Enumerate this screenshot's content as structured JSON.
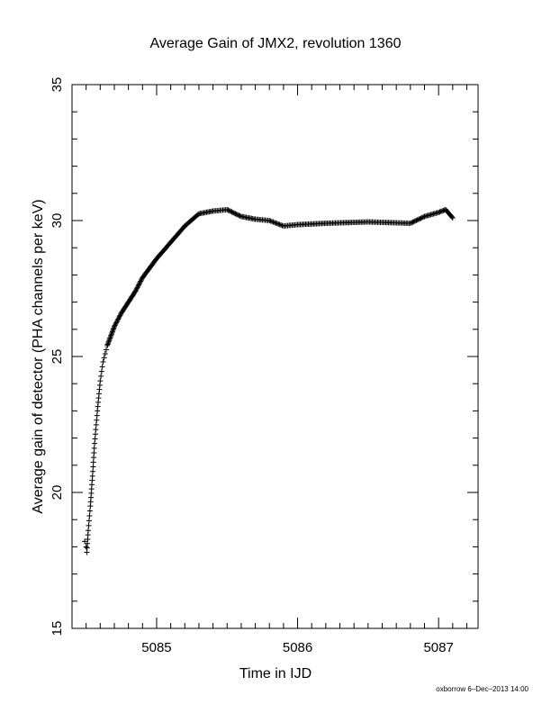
{
  "chart_data": {
    "type": "scatter",
    "title": "Average Gain of JMX2, revolution 1360",
    "xlabel": "Time in IJD",
    "ylabel": "Average gain of detector (PHA channels per keV)",
    "xlim": [
      5084.4,
      5087.28
    ],
    "ylim": [
      15,
      35
    ],
    "xticks": [
      5085,
      5086,
      5087
    ],
    "xtick_labels": [
      "5085",
      "5086",
      "5087"
    ],
    "x_minor_step": 0.1,
    "yticks": [
      15,
      20,
      25,
      30,
      35
    ],
    "ytick_labels": [
      "15",
      "20",
      "25",
      "30",
      "35"
    ],
    "y_minor_step": 1,
    "marker": "plus",
    "grid": false,
    "series": [
      {
        "name": "",
        "curve_points": [
          [
            5084.505,
            17.8
          ],
          [
            5084.515,
            18.6
          ],
          [
            5084.53,
            19.5
          ],
          [
            5084.545,
            20.6
          ],
          [
            5084.56,
            21.8
          ],
          [
            5084.58,
            23.0
          ],
          [
            5084.6,
            24.1
          ],
          [
            5084.62,
            24.8
          ],
          [
            5084.65,
            25.4
          ],
          [
            5084.7,
            26.1
          ],
          [
            5084.75,
            26.6
          ],
          [
            5084.8,
            27.0
          ],
          [
            5084.85,
            27.4
          ],
          [
            5084.9,
            27.9
          ],
          [
            5085.0,
            28.6
          ],
          [
            5085.1,
            29.2
          ],
          [
            5085.2,
            29.8
          ],
          [
            5085.3,
            30.25
          ],
          [
            5085.4,
            30.35
          ],
          [
            5085.5,
            30.4
          ],
          [
            5085.6,
            30.15
          ],
          [
            5085.7,
            30.05
          ],
          [
            5085.8,
            30.0
          ],
          [
            5085.9,
            29.8
          ],
          [
            5086.0,
            29.85
          ],
          [
            5086.2,
            29.9
          ],
          [
            5086.5,
            29.95
          ],
          [
            5086.8,
            29.9
          ],
          [
            5086.9,
            30.15
          ],
          [
            5087.0,
            30.3
          ],
          [
            5087.05,
            30.4
          ],
          [
            5087.1,
            30.1
          ]
        ]
      }
    ]
  },
  "footer": {
    "credit": "oxborrow 6–Dec–2013 14:00"
  }
}
